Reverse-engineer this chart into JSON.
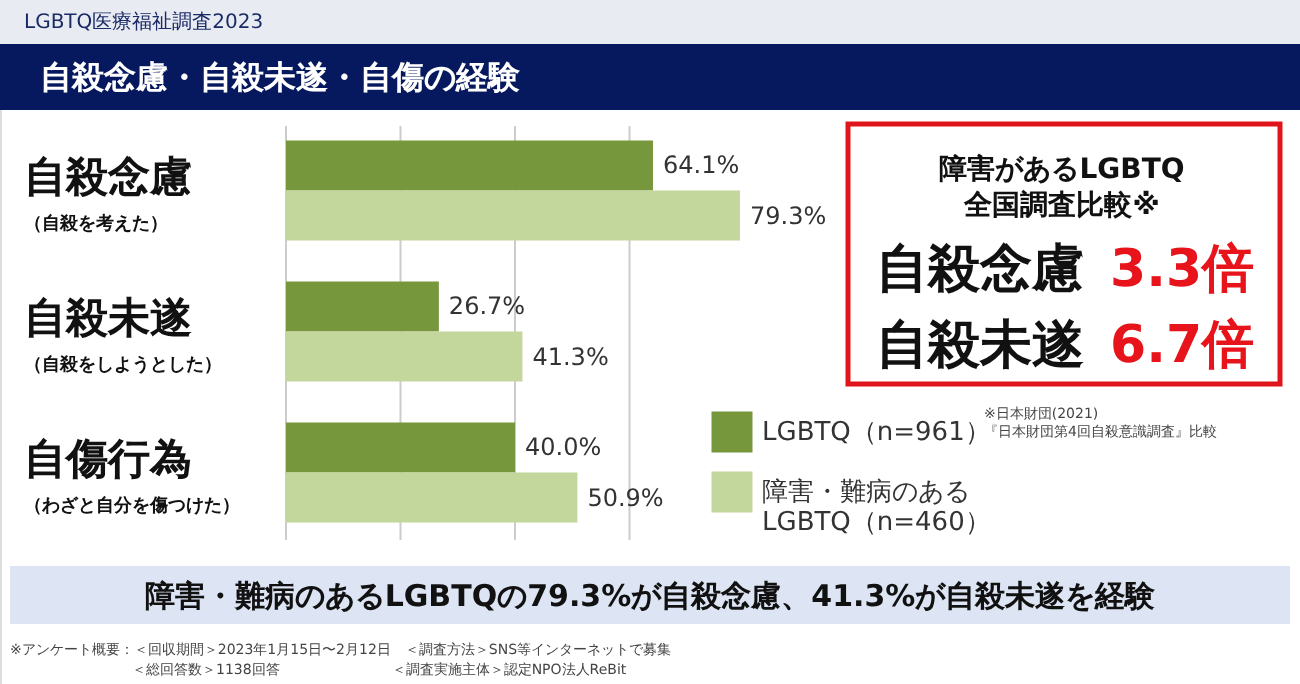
{
  "chart_data": {
    "type": "bar",
    "orientation": "horizontal",
    "subtitle": "LGBTQ医療福祉調査2023",
    "title": "自殺念慮・自殺未遂・自傷の経験",
    "categories": [
      "自殺念慮",
      "自殺未遂",
      "自傷行為"
    ],
    "series": [
      {
        "name": "LGBTQ（n=961）",
        "color": "#77973d",
        "values": [
          64.1,
          26.7,
          40.0
        ],
        "value_labels": [
          "64.1%",
          "26.7%",
          "40.0%"
        ]
      },
      {
        "name": "障害・難病のある\nLGBTQ（n=460）",
        "color": "#c3d69b",
        "values": [
          79.3,
          41.3,
          50.9
        ],
        "value_labels": [
          "79.3%",
          "41.3%",
          "50.9%"
        ]
      }
    ],
    "xticks": [
      {
        "value": 0,
        "label": null
      },
      {
        "value": 20,
        "label": null
      },
      {
        "value": 40,
        "label": null
      },
      {
        "value": 60,
        "label": null
      }
    ],
    "grid": "x",
    "legend": "right",
    "annotations": [
      "（自殺を考えた）",
      "（自殺をしようとした）",
      "（わざと自分を傷つけた）",
      "障害があるLGBTQ\n全国調査比較※",
      "自殺念慮",
      "3.3倍",
      "自殺未遂",
      "6.7倍",
      "※日本財団(2021)\n『日本財団第4回自殺意識調査』比較",
      "障害・難病のあるLGBTQの79.3%が自殺念慮、41.3%が自殺未遂を経験",
      "※アンケート概要：＜回収期間＞2023年1月15日〜2月12日　＜調査方法＞SNS等インターネットで募集",
      "＜総回答数＞1138回答　　　　　　　　＜調査実施主体＞認定NPO法人ReBit"
    ]
  }
}
